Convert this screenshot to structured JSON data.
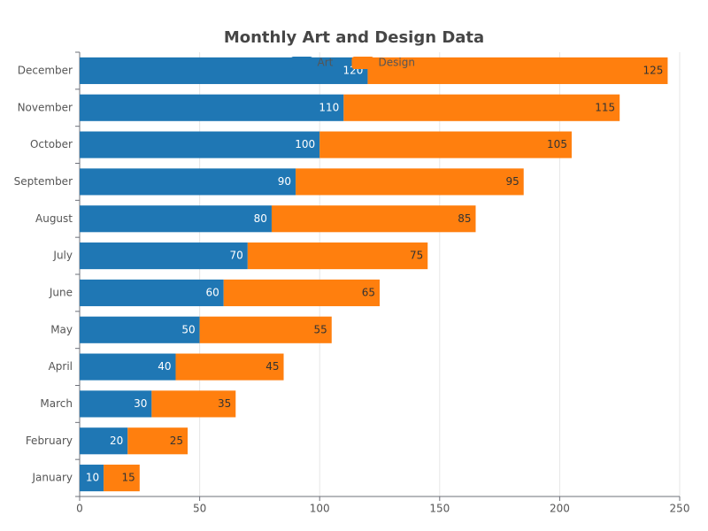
{
  "chart_data": {
    "type": "bar",
    "orientation": "horizontal",
    "stacked": true,
    "title": "Monthly Art and Design Data",
    "categories": [
      "January",
      "February",
      "March",
      "April",
      "May",
      "June",
      "July",
      "August",
      "September",
      "October",
      "November",
      "December"
    ],
    "series": [
      {
        "name": "Art",
        "color": "#1f77b4",
        "values": [
          10,
          20,
          30,
          40,
          50,
          60,
          70,
          80,
          90,
          100,
          110,
          120
        ]
      },
      {
        "name": "Design",
        "color": "#ff7f0e",
        "values": [
          15,
          25,
          35,
          45,
          55,
          65,
          75,
          85,
          95,
          105,
          115,
          125
        ]
      }
    ],
    "xlim": [
      0,
      250
    ],
    "xticks": [
      0,
      50,
      100,
      150,
      200,
      250
    ],
    "grid": true,
    "legend": "top"
  }
}
